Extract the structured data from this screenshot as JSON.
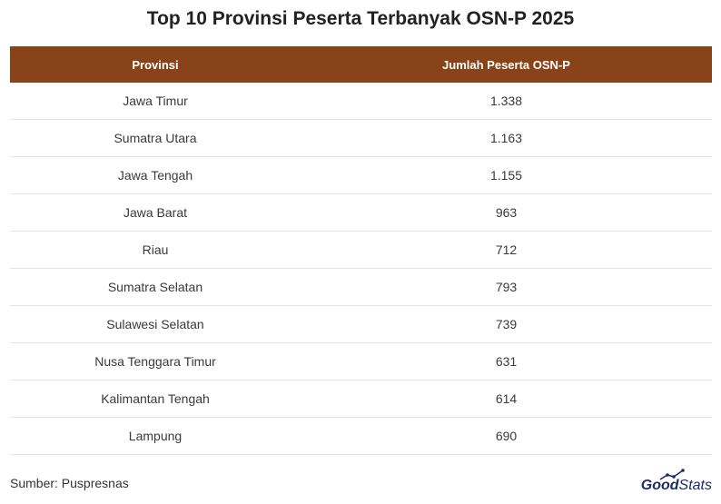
{
  "title": "Top 10 Provinsi Peserta Terbanyak OSN-P 2025",
  "chart_data": {
    "type": "table",
    "columns": [
      "Provinsi",
      "Jumlah Peserta OSN-P"
    ],
    "rows": [
      {
        "provinsi": "Jawa Timur",
        "jumlah": "1.338"
      },
      {
        "provinsi": "Sumatra Utara",
        "jumlah": "1.163"
      },
      {
        "provinsi": "Jawa Tengah",
        "jumlah": "1.155"
      },
      {
        "provinsi": "Jawa Barat",
        "jumlah": "963"
      },
      {
        "provinsi": "Riau",
        "jumlah": "712"
      },
      {
        "provinsi": "Sumatra Selatan",
        "jumlah": "793"
      },
      {
        "provinsi": "Sulawesi Selatan",
        "jumlah": "739"
      },
      {
        "provinsi": "Nusa Tenggara Timur",
        "jumlah": "631"
      },
      {
        "provinsi": "Kalimantan Tengah",
        "jumlah": "614"
      },
      {
        "provinsi": "Lampung",
        "jumlah": "690"
      }
    ]
  },
  "source": "Sumber: Puspresnas",
  "logo": {
    "good": "Good",
    "stats": "Stats",
    "icon": "growth-chart-icon"
  },
  "colors": {
    "header_bg": "#884418",
    "logo": "#1d2a6b",
    "row_border": "#e4e4e4"
  }
}
